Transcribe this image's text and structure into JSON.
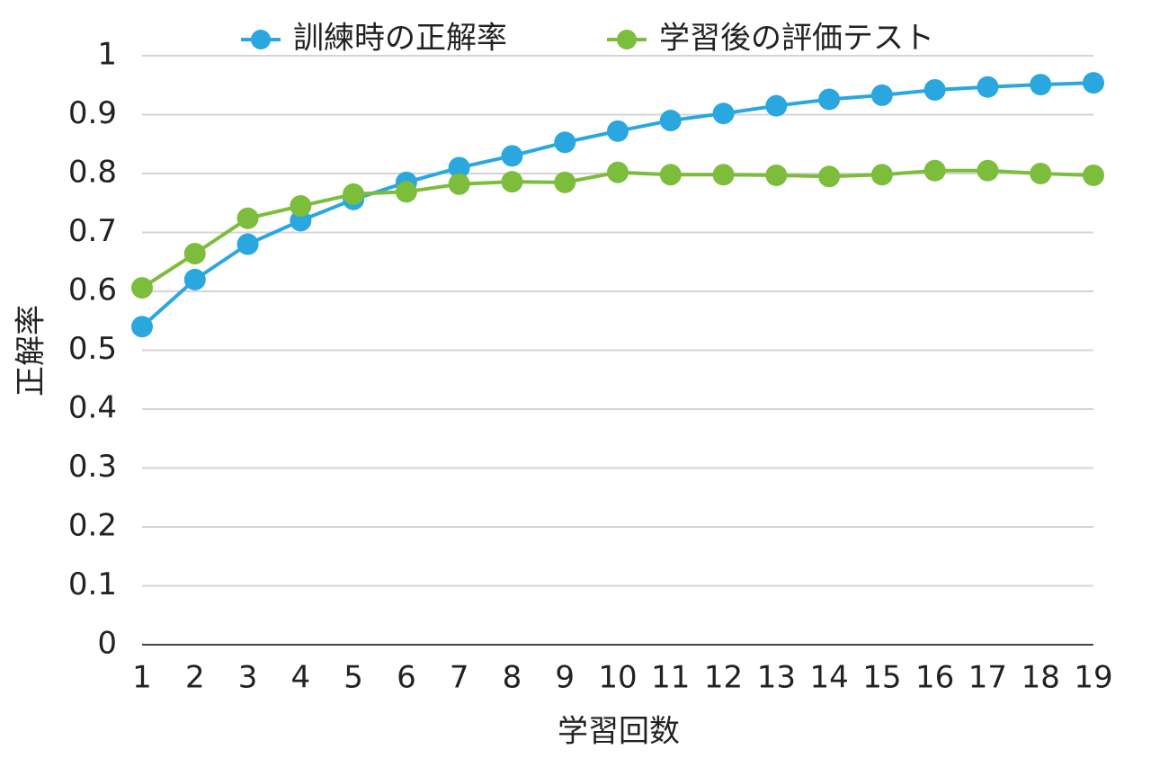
{
  "chart_data": {
    "type": "line",
    "x_label": "学習回数",
    "y_label": "正解率",
    "x": [
      1,
      2,
      3,
      4,
      5,
      6,
      7,
      8,
      9,
      10,
      11,
      12,
      13,
      14,
      15,
      16,
      17,
      18,
      19
    ],
    "xlim": [
      1,
      19
    ],
    "xticks": [
      1,
      2,
      3,
      4,
      5,
      6,
      7,
      8,
      9,
      10,
      11,
      12,
      13,
      14,
      15,
      16,
      17,
      18,
      19
    ],
    "ylim": [
      0,
      1
    ],
    "yticks": [
      0,
      0.1,
      0.2,
      0.3,
      0.4,
      0.5,
      0.6,
      0.7,
      0.8,
      0.9,
      1
    ],
    "grid": true,
    "legend": "top",
    "series": [
      {
        "name": "訓練時の正解率",
        "color": "#2aa7df",
        "values": [
          0.54,
          0.62,
          0.68,
          0.72,
          0.756,
          0.785,
          0.81,
          0.83,
          0.853,
          0.872,
          0.89,
          0.902,
          0.915,
          0.926,
          0.933,
          0.942,
          0.947,
          0.951,
          0.954
        ]
      },
      {
        "name": "学習後の評価テスト",
        "color": "#7cbd3c",
        "values": [
          0.606,
          0.664,
          0.724,
          0.745,
          0.765,
          0.769,
          0.782,
          0.786,
          0.785,
          0.802,
          0.798,
          0.798,
          0.797,
          0.795,
          0.798,
          0.805,
          0.805,
          0.8,
          0.797
        ]
      }
    ]
  }
}
